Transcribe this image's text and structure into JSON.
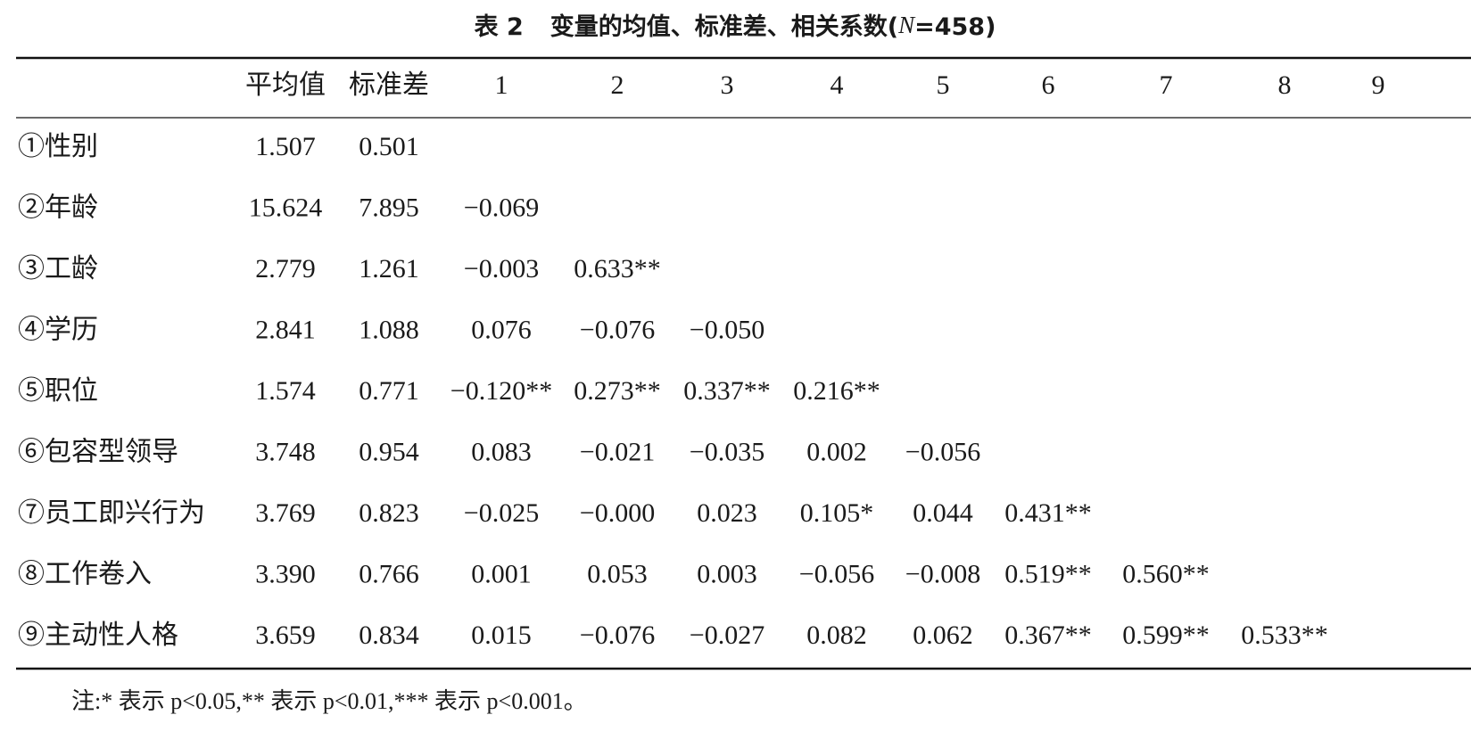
{
  "caption": {
    "label": "表 2",
    "text_before": "变量的均值、标准差、相关系数(",
    "italic": "N",
    "text_after": "=458)"
  },
  "table": {
    "header": [
      "平均值",
      "标准差",
      "1",
      "2",
      "3",
      "4",
      "5",
      "6",
      "7",
      "8",
      "9"
    ],
    "rows": [
      {
        "label": "①性别",
        "values": [
          "1.507",
          "0.501"
        ]
      },
      {
        "label": "②年龄",
        "values": [
          "15.624",
          "7.895",
          "−0.069"
        ]
      },
      {
        "label": "③工龄",
        "values": [
          "2.779",
          "1.261",
          "−0.003",
          "0.633**"
        ]
      },
      {
        "label": "④学历",
        "values": [
          "2.841",
          "1.088",
          "0.076",
          "−0.076",
          "−0.050"
        ]
      },
      {
        "label": "⑤职位",
        "values": [
          "1.574",
          "0.771",
          "−0.120**",
          "0.273**",
          "0.337**",
          "0.216**"
        ]
      },
      {
        "label": "⑥包容型领导",
        "values": [
          "3.748",
          "0.954",
          "0.083",
          "−0.021",
          "−0.035",
          "0.002",
          "−0.056"
        ]
      },
      {
        "label": "⑦员工即兴行为",
        "values": [
          "3.769",
          "0.823",
          "−0.025",
          "−0.000",
          "0.023",
          "0.105*",
          "0.044",
          "0.431**"
        ]
      },
      {
        "label": "⑧工作卷入",
        "values": [
          "3.390",
          "0.766",
          "0.001",
          "0.053",
          "0.003",
          "−0.056",
          "−0.008",
          "0.519**",
          "0.560**"
        ]
      },
      {
        "label": "⑨主动性人格",
        "values": [
          "3.659",
          "0.834",
          "0.015",
          "−0.076",
          "−0.027",
          "0.082",
          "0.062",
          "0.367**",
          "0.599**",
          "0.533**"
        ]
      }
    ]
  },
  "note": "注:* 表示 p<0.05,** 表示 p<0.01,*** 表示 p<0.001。"
}
